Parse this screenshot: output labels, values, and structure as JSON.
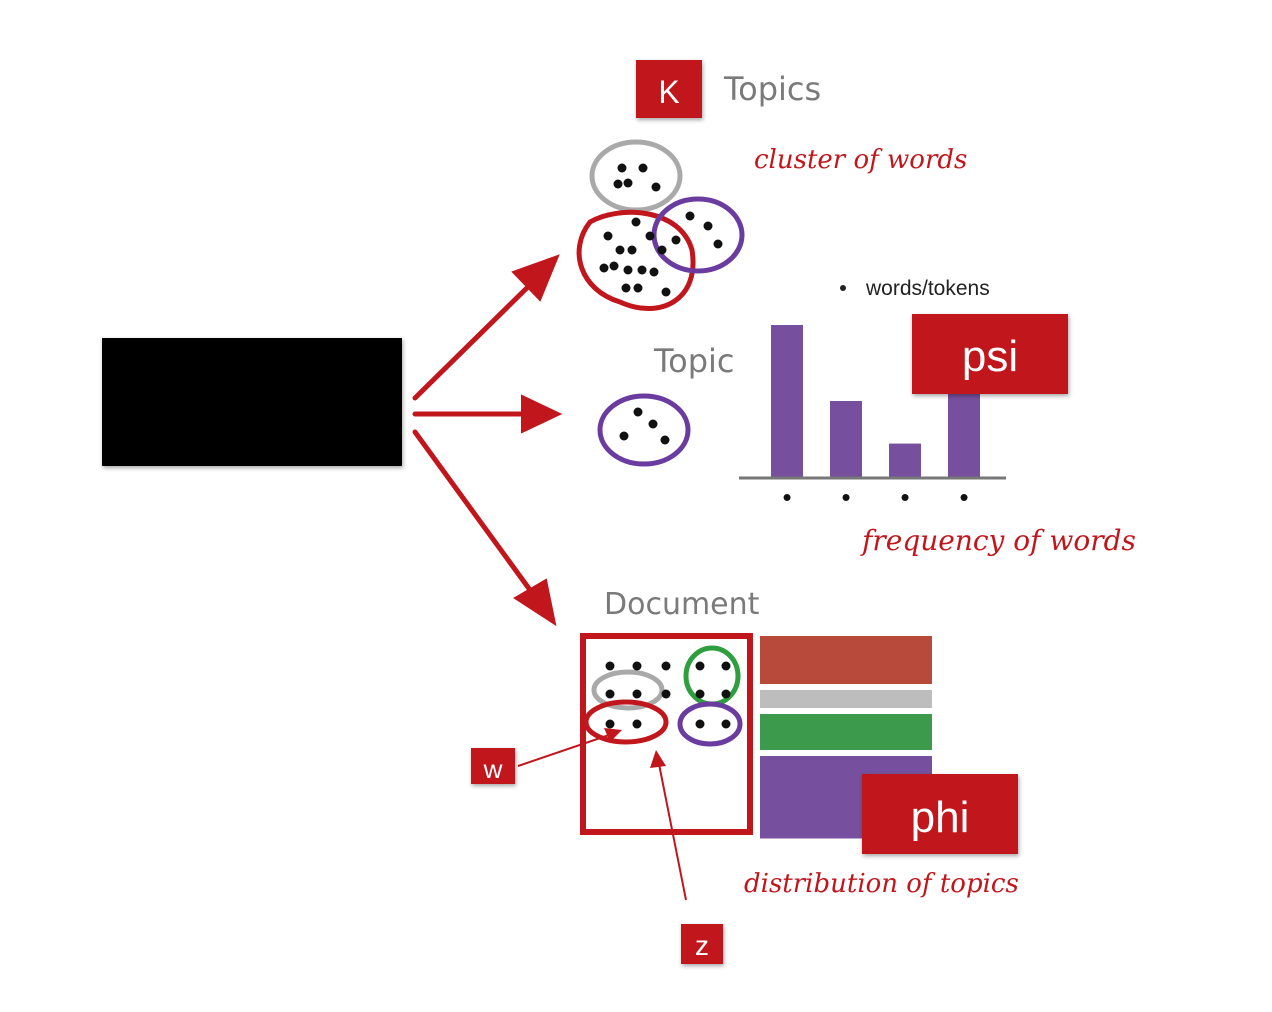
{
  "topics_section": {
    "k_label": "K",
    "title": "Topics",
    "annotation": "cluster of words"
  },
  "topic_section": {
    "title": "Topic",
    "legend_bullet": "words/tokens",
    "psi_label": "psi",
    "annotation": "frequency of words"
  },
  "document_section": {
    "title": "Document",
    "phi_label": "phi",
    "w_label": "w",
    "z_label": "z",
    "annotation": "distribution of topics"
  },
  "colors": {
    "red": "#c0161c",
    "gray": "#a9a9a9",
    "purple": "#6a3ca0",
    "green": "#2f9e3f",
    "bar_purple": "#76509e",
    "bar_red": "#b84a3c",
    "bar_gray": "#bdbdbd",
    "bar_green": "#3c9a4c",
    "black_box": "#000000"
  },
  "chart_data": {
    "type": "bar",
    "categories": [
      "•",
      "•",
      "•",
      "•"
    ],
    "values": [
      100,
      50,
      22,
      65
    ],
    "ylim": [
      0,
      100
    ],
    "title": "",
    "xlabel": "",
    "ylabel": ""
  },
  "topic_distribution": [
    {
      "color": "#b84a3c",
      "value": 0.32
    },
    {
      "color": "#bdbdbd",
      "value": 0.12
    },
    {
      "color": "#3c9a4c",
      "value": 0.24
    },
    {
      "color": "#76509e",
      "value": 0.55
    }
  ]
}
